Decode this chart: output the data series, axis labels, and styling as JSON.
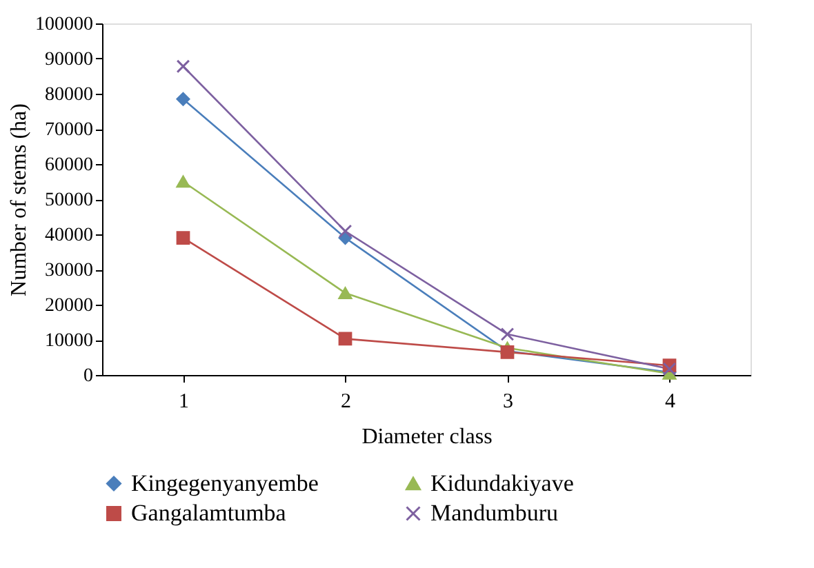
{
  "chart_data": {
    "type": "line",
    "xlabel": "Diameter class",
    "ylabel": "Number of stems (ha)",
    "categories": [
      "1",
      "2",
      "3",
      "4"
    ],
    "series": [
      {
        "name": "Kingegenyanyembe",
        "color": "#4a7ebb",
        "marker": "diamond",
        "values": [
          78500,
          39000,
          6800,
          800
        ]
      },
      {
        "name": "Kidundakiyave",
        "color": "#98b954",
        "marker": "triangle",
        "values": [
          55000,
          23300,
          7700,
          400
        ]
      },
      {
        "name": "Gangalamtumba",
        "color": "#be4b48",
        "marker": "square",
        "values": [
          39000,
          10300,
          6500,
          2700
        ]
      },
      {
        "name": "Mandumburu",
        "color": "#7d60a0",
        "marker": "cross",
        "values": [
          87800,
          40900,
          11600,
          1700
        ]
      }
    ],
    "ylim": [
      0,
      100000
    ],
    "yticks": [
      0,
      10000,
      20000,
      30000,
      40000,
      50000,
      60000,
      70000,
      80000,
      90000,
      100000
    ],
    "grid": false,
    "legend": "bottom"
  }
}
